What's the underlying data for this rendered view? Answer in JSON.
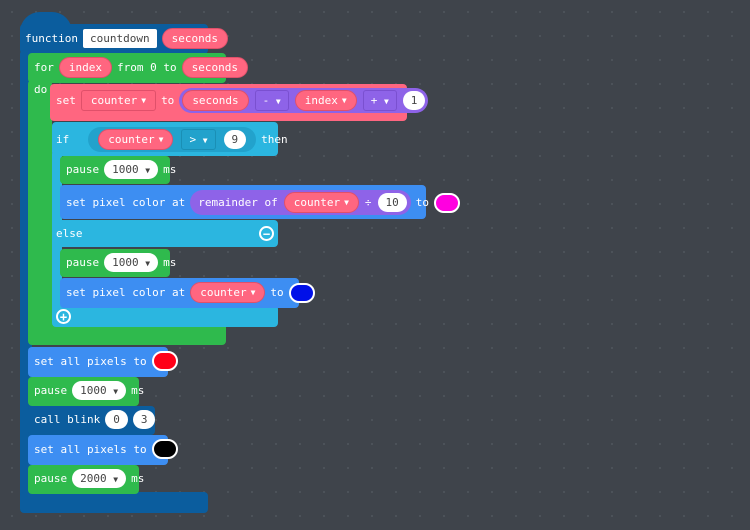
{
  "function": {
    "keyword": "function",
    "name": "countdown",
    "param": "seconds"
  },
  "for_loop": {
    "keyword": "for",
    "var": "index",
    "from_label": "from 0 to",
    "to": "seconds",
    "do_label": "do"
  },
  "set_block": {
    "keyword": "set",
    "var": "counter",
    "to_label": "to",
    "a": "seconds",
    "op1": "-",
    "b": "index",
    "op2": "+",
    "c": "1"
  },
  "if_block": {
    "keyword": "if",
    "var": "counter",
    "op": ">",
    "value": "9",
    "then_label": "then",
    "else_label": "else"
  },
  "then_pause": {
    "keyword": "pause",
    "value": "1000",
    "unit": "ms"
  },
  "then_pixel": {
    "label": "set pixel color at",
    "remainder_label": "remainder of",
    "var": "counter",
    "op": "÷",
    "divisor": "10",
    "to_label": "to",
    "color": "#ff00e0"
  },
  "else_pause": {
    "keyword": "pause",
    "value": "1000",
    "unit": "ms"
  },
  "else_pixel": {
    "label": "set pixel color at",
    "var": "counter",
    "to_label": "to",
    "color": "#0010e8"
  },
  "all_red": {
    "label": "set all pixels to",
    "color": "#ff0018"
  },
  "pause1": {
    "keyword": "pause",
    "value": "1000",
    "unit": "ms"
  },
  "call": {
    "label": "call blink",
    "arg1": "0",
    "arg2": "3"
  },
  "all_black": {
    "label": "set all pixels to",
    "color": "#000000"
  },
  "pause2": {
    "keyword": "pause",
    "value": "2000",
    "unit": "ms"
  }
}
